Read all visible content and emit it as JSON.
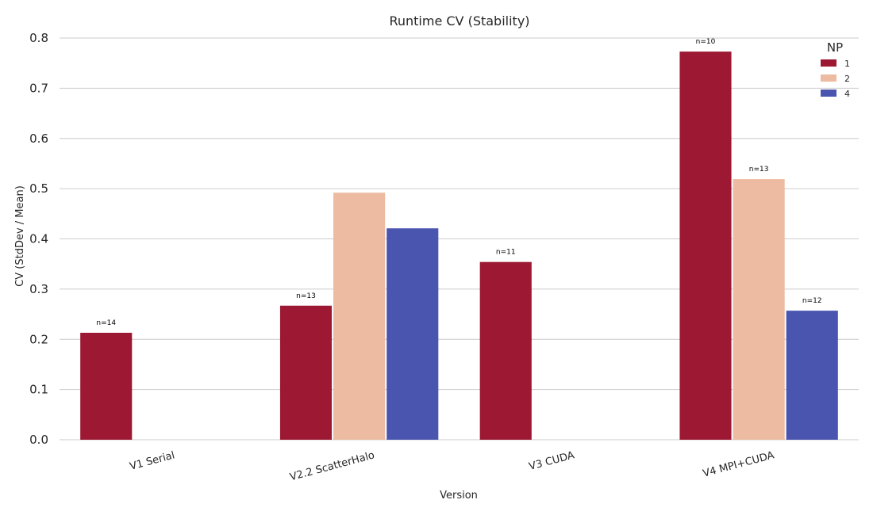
{
  "chart_data": {
    "type": "bar",
    "title": "Runtime CV (Stability)",
    "xlabel": "Version",
    "ylabel": "CV (StdDev / Mean)",
    "ylim": [
      0,
      0.8
    ],
    "yticks": [
      "0.0",
      "0.1",
      "0.2",
      "0.3",
      "0.4",
      "0.5",
      "0.6",
      "0.7",
      "0.8"
    ],
    "grid": true,
    "legend_placement": "top-right",
    "legend_title": "NP",
    "categories": [
      "V1 Serial",
      "V2.2 ScatterHalo",
      "V3 CUDA",
      "V4 MPI+CUDA"
    ],
    "series": [
      {
        "name": "1",
        "color": "#9c1833",
        "values": [
          0.213,
          0.267,
          0.354,
          0.773
        ],
        "annotations": [
          "n=14",
          "n=13",
          "n=11",
          "n=10"
        ]
      },
      {
        "name": "2",
        "color": "#ecbba2",
        "values": [
          null,
          0.492,
          null,
          0.519
        ],
        "annotations": [
          null,
          null,
          null,
          "n=13"
        ]
      },
      {
        "name": "4",
        "color": "#4a55b0",
        "values": [
          null,
          0.421,
          null,
          0.257
        ],
        "annotations": [
          null,
          null,
          null,
          "n=12"
        ]
      }
    ]
  }
}
